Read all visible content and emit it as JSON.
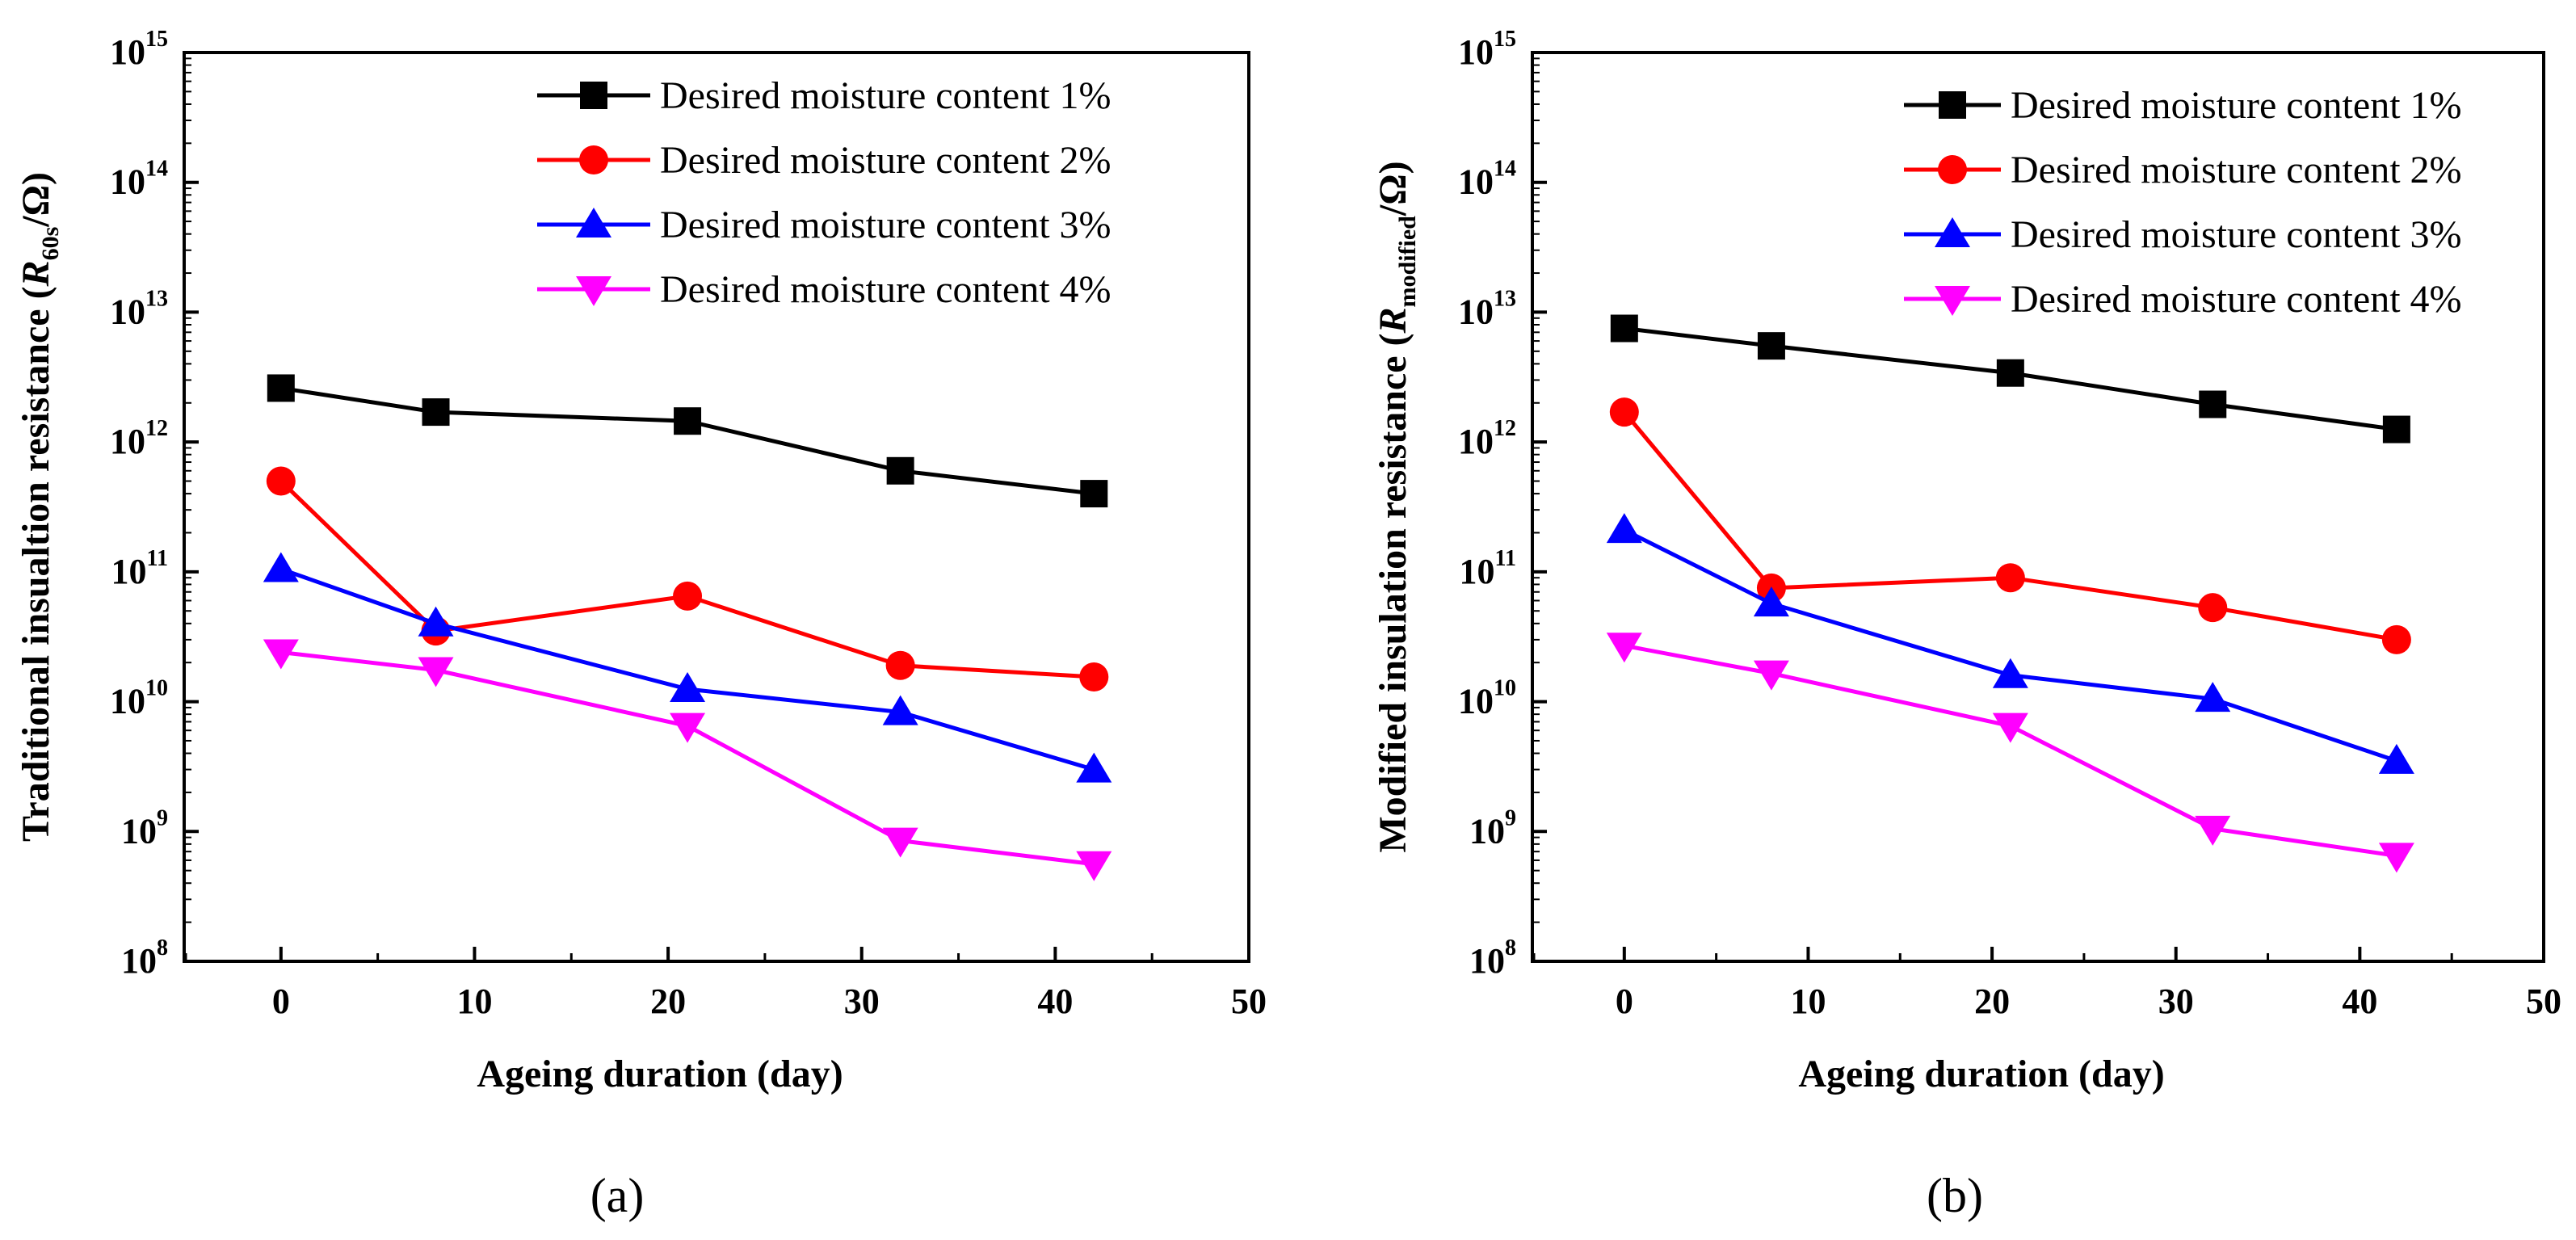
{
  "figure": {
    "panel_labels": [
      "(a)",
      "(b)"
    ]
  },
  "chart_data": [
    {
      "type": "line",
      "panel": "(a)",
      "title": "",
      "xlabel": "Ageing duration (day)",
      "ylabel_prefix": "Traditional insualtion resistance (",
      "ylabel_symbol": "R",
      "ylabel_subscript": "60s",
      "ylabel_suffix": "/Ω)",
      "xlim": [
        -5,
        50
      ],
      "xticks": [
        0,
        10,
        20,
        30,
        40,
        50
      ],
      "yscale": "log",
      "ylim": [
        100000000.0,
        1000000000000000.0
      ],
      "yticks_exponents": [
        8,
        9,
        10,
        11,
        12,
        13,
        14,
        15
      ],
      "ytick_base": "10",
      "legend_position": "top-right",
      "x": [
        0,
        8,
        21,
        32,
        42
      ],
      "series": [
        {
          "name": "Desired moisture content 1%",
          "color": "#000000",
          "marker": "square",
          "values": [
            2600000000000.0,
            1700000000000.0,
            1450000000000.0,
            600000000000.0,
            400000000000.0
          ]
        },
        {
          "name": "Desired moisture content 2%",
          "color": "#ff0000",
          "marker": "circle",
          "values": [
            500000000000.0,
            35000000000.0,
            65000000000.0,
            19000000000.0,
            15500000000.0
          ]
        },
        {
          "name": "Desired moisture content 3%",
          "color": "#0000ff",
          "marker": "triangle-up",
          "values": [
            105000000000.0,
            40000000000.0,
            12500000000.0,
            8300000000.0,
            3000000000.0
          ]
        },
        {
          "name": "Desired moisture content 4%",
          "color": "#ff00ff",
          "marker": "triangle-down",
          "values": [
            24000000000.0,
            17500000000.0,
            6500000000.0,
            850000000.0,
            560000000.0
          ]
        }
      ]
    },
    {
      "type": "line",
      "panel": "(b)",
      "title": "",
      "xlabel": "Ageing duration (day)",
      "ylabel_prefix": "Modified insulation resistance (",
      "ylabel_symbol": "R",
      "ylabel_subscript": "modified",
      "ylabel_suffix": "/Ω)",
      "xlim": [
        -5,
        50
      ],
      "xticks": [
        0,
        10,
        20,
        30,
        40,
        50
      ],
      "yscale": "log",
      "ylim": [
        100000000.0,
        1000000000000000.0
      ],
      "yticks_exponents": [
        8,
        9,
        10,
        11,
        12,
        13,
        14,
        15
      ],
      "ytick_base": "10",
      "legend_position": "top-right",
      "x": [
        0,
        8,
        21,
        32,
        42
      ],
      "series": [
        {
          "name": "Desired moisture content  1%",
          "color": "#000000",
          "marker": "square",
          "values": [
            7500000000000.0,
            5500000000000.0,
            3400000000000.0,
            1950000000000.0,
            1250000000000.0
          ]
        },
        {
          "name": "Desired moisture content  2%",
          "color": "#ff0000",
          "marker": "circle",
          "values": [
            1700000000000.0,
            75000000000.0,
            90000000000.0,
            53000000000.0,
            30000000000.0
          ]
        },
        {
          "name": "Desired moisture content  3%",
          "color": "#0000ff",
          "marker": "triangle-up",
          "values": [
            210000000000.0,
            57000000000.0,
            16000000000.0,
            10500000000.0,
            3500000000.0
          ]
        },
        {
          "name": "Desired moisture content  4%",
          "color": "#ff00ff",
          "marker": "triangle-down",
          "values": [
            27000000000.0,
            16500000000.0,
            6500000000.0,
            1050000000.0,
            650000000.0
          ]
        }
      ]
    }
  ]
}
